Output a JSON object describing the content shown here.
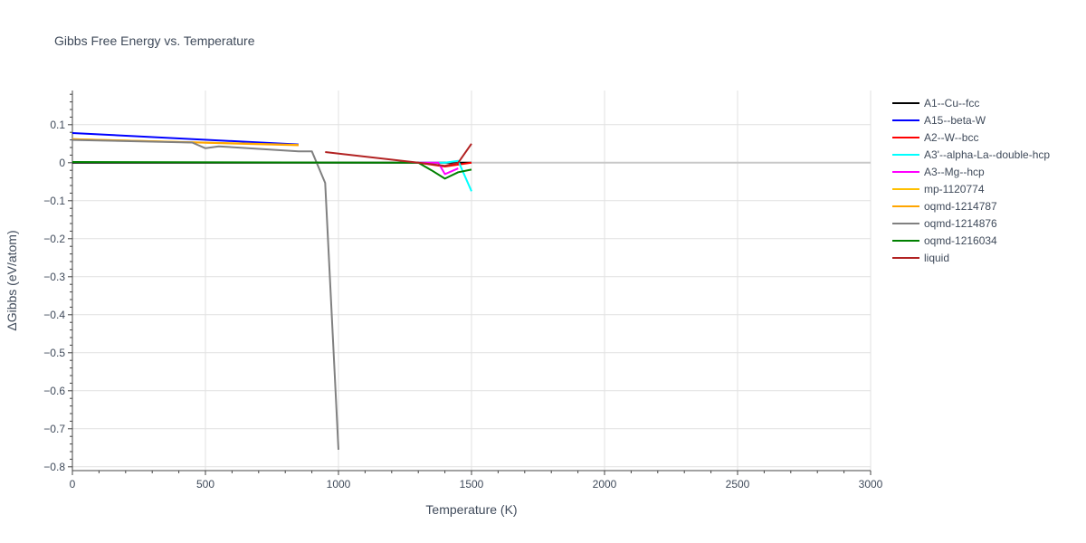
{
  "chart_data": {
    "type": "line",
    "title": "Gibbs Free Energy vs. Temperature",
    "xlabel": "Temperature (K)",
    "ylabel": "ΔGibbs (eV/atom)",
    "xlim": [
      0,
      3000
    ],
    "ylim": [
      -0.81,
      0.19
    ],
    "xticks": [
      0,
      500,
      1000,
      1500,
      2000,
      2500,
      3000
    ],
    "xtick_labels": [
      "0",
      "500",
      "1000",
      "1500",
      "2000",
      "2500",
      "3000"
    ],
    "yticks": [
      0.1,
      0,
      -0.1,
      -0.2,
      -0.3,
      -0.4,
      -0.5,
      -0.6,
      -0.7,
      -0.8
    ],
    "ytick_labels": [
      "0.1",
      "0",
      "−0.1",
      "−0.2",
      "−0.3",
      "−0.4",
      "−0.5",
      "−0.6",
      "−0.7",
      "−0.8"
    ],
    "grid": true,
    "legend_position": "right",
    "series": [
      {
        "name": "A1--Cu--fcc",
        "color": "#000000",
        "x": [
          0,
          1500
        ],
        "y": [
          0,
          0
        ]
      },
      {
        "name": "A15--beta-W",
        "color": "#0000ff",
        "x": [
          0,
          850
        ],
        "y": [
          0.078,
          0.048
        ]
      },
      {
        "name": "A2--W--bcc",
        "color": "#ff0000",
        "x": [
          1300,
          1400,
          1500
        ],
        "y": [
          0,
          -0.01,
          0
        ]
      },
      {
        "name": "A3'--alpha-La--double-hcp",
        "color": "#00ffff",
        "x": [
          1300,
          1400,
          1450,
          1500
        ],
        "y": [
          0,
          0,
          0.005,
          -0.075
        ]
      },
      {
        "name": "A3--Mg--hcp",
        "color": "#ff00ff",
        "x": [
          1300,
          1375,
          1400,
          1450
        ],
        "y": [
          0,
          0,
          -0.03,
          -0.015
        ]
      },
      {
        "name": "mp-1120774",
        "color": "#ffc000",
        "x": [
          0,
          850
        ],
        "y": [
          0.062,
          0.047
        ]
      },
      {
        "name": "oqmd-1214787",
        "color": "#ffa500",
        "x": [
          0,
          850
        ],
        "y": [
          0.062,
          0.046
        ]
      },
      {
        "name": "oqmd-1214876",
        "color": "#808080",
        "x": [
          0,
          450,
          500,
          550,
          850,
          900,
          950,
          1000
        ],
        "y": [
          0.06,
          0.053,
          0.038,
          0.043,
          0.03,
          0.03,
          -0.053,
          -0.755
        ]
      },
      {
        "name": "oqmd-1216034",
        "color": "#008000",
        "x": [
          0,
          1300,
          1350,
          1400,
          1450,
          1500
        ],
        "y": [
          0.002,
          0,
          -0.02,
          -0.042,
          -0.025,
          -0.018
        ]
      },
      {
        "name": "liquid",
        "color": "#b22222",
        "x": [
          950,
          1300,
          1400,
          1450,
          1500
        ],
        "y": [
          0.028,
          0,
          -0.008,
          0,
          0.05
        ]
      }
    ]
  }
}
